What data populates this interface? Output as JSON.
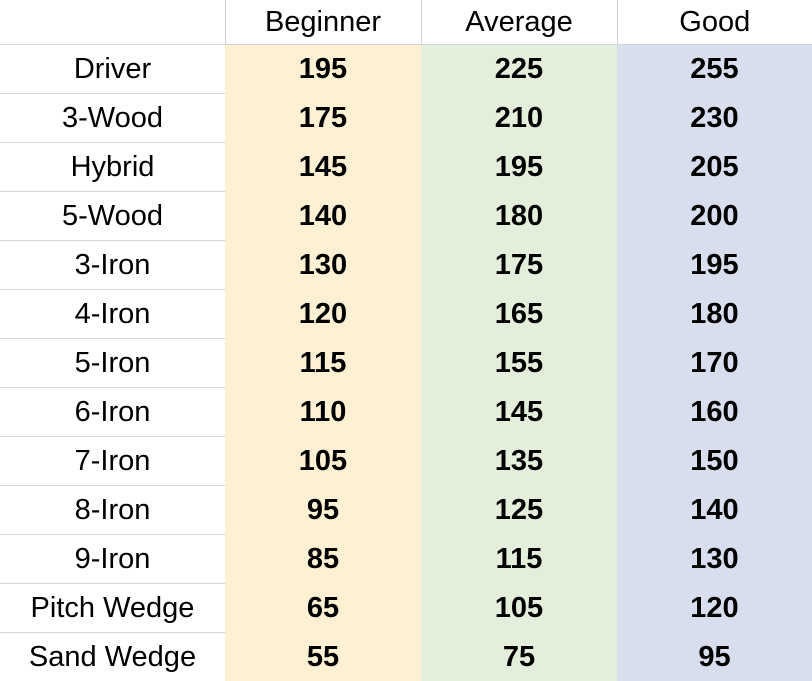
{
  "chart_data": {
    "type": "table",
    "columns": [
      "",
      "Beginner",
      "Average",
      "Good"
    ],
    "column_colors": [
      "#ffffff",
      "#fdf0d3",
      "#e3efdb",
      "#d9deef"
    ],
    "rows": [
      {
        "club": "Driver",
        "values": [
          "195",
          "225",
          "255"
        ]
      },
      {
        "club": "3-Wood",
        "values": [
          "175",
          "210",
          "230"
        ]
      },
      {
        "club": "Hybrid",
        "values": [
          "145",
          "195",
          "205"
        ]
      },
      {
        "club": "5-Wood",
        "values": [
          "140",
          "180",
          "200"
        ]
      },
      {
        "club": "3-Iron",
        "values": [
          "130",
          "175",
          "195"
        ]
      },
      {
        "club": "4-Iron",
        "values": [
          "120",
          "165",
          "180"
        ]
      },
      {
        "club": "5-Iron",
        "values": [
          "115",
          "155",
          "170"
        ]
      },
      {
        "club": "6-Iron",
        "values": [
          "110",
          "145",
          "160"
        ]
      },
      {
        "club": "7-Iron",
        "values": [
          "105",
          "135",
          "150"
        ]
      },
      {
        "club": "8-Iron",
        "values": [
          "95",
          "125",
          "140"
        ]
      },
      {
        "club": "9-Iron",
        "values": [
          "85",
          "115",
          "130"
        ]
      },
      {
        "club": "Pitch Wedge",
        "values": [
          "65",
          "105",
          "120"
        ]
      },
      {
        "club": "Sand Wedge",
        "values": [
          "55",
          "75",
          "95"
        ]
      }
    ]
  }
}
